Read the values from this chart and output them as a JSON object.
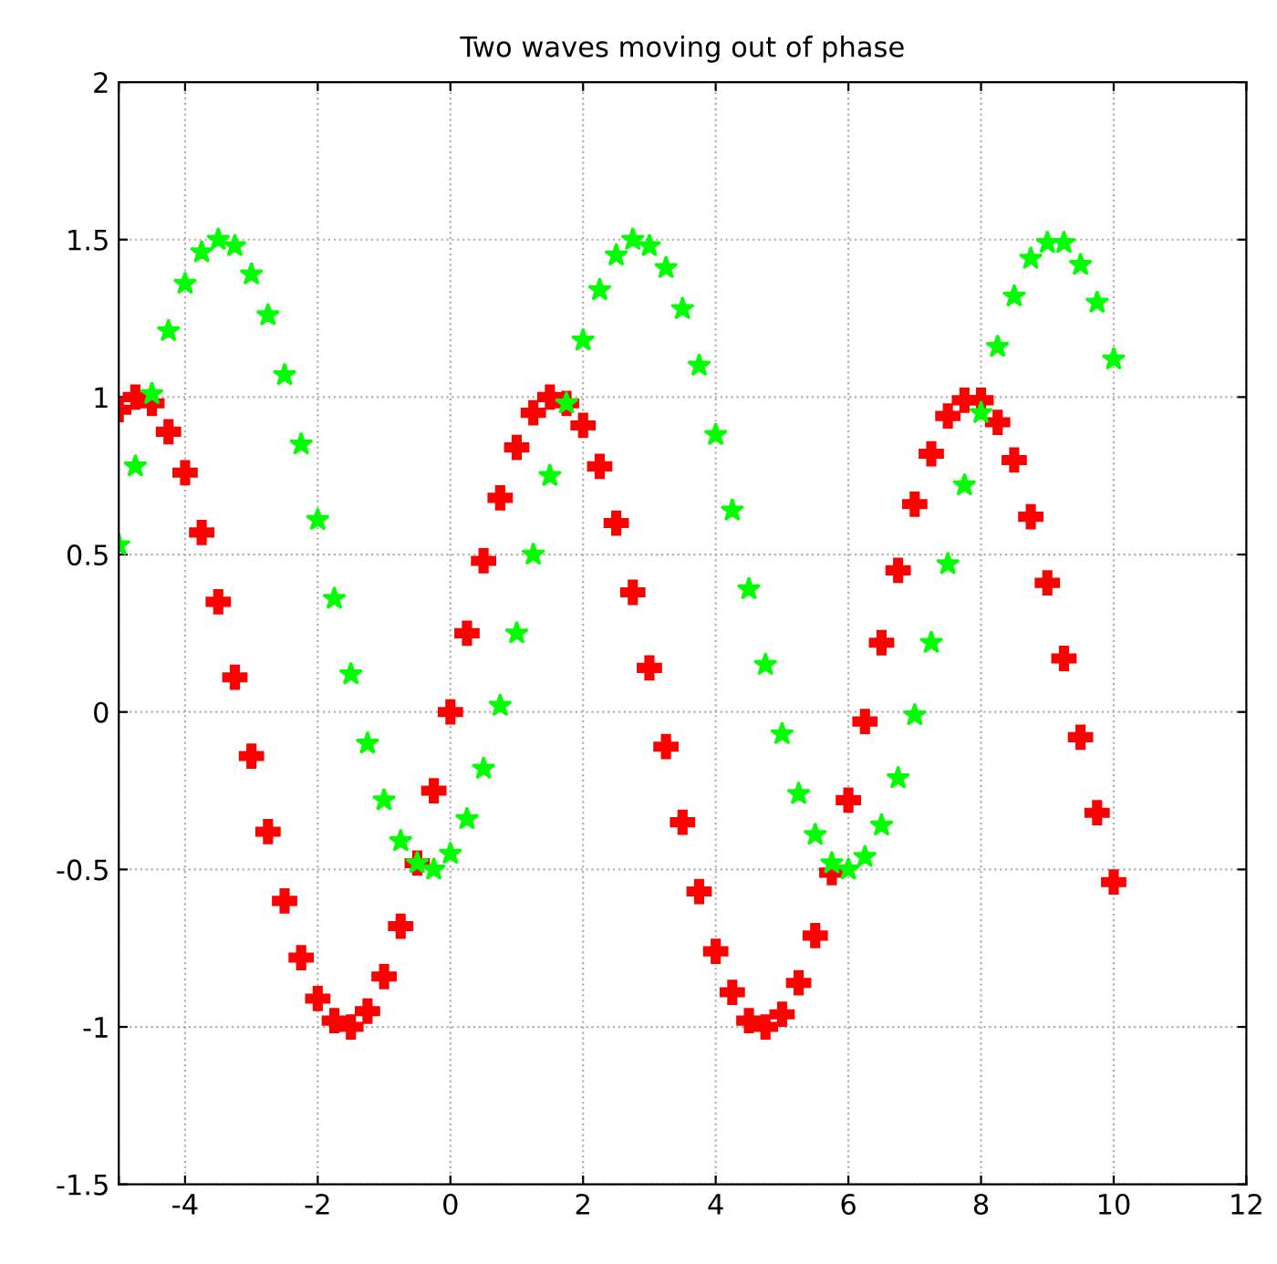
{
  "chart_data": {
    "type": "scatter",
    "title": "Two waves moving out of phase",
    "x": [
      -5,
      -4.75,
      -4.5,
      -4.25,
      -4,
      -3.75,
      -3.5,
      -3.25,
      -3,
      -2.75,
      -2.5,
      -2.25,
      -2,
      -1.75,
      -1.5,
      -1.25,
      -1,
      -0.75,
      -0.5,
      -0.25,
      0,
      0.25,
      0.5,
      0.75,
      1,
      1.25,
      1.5,
      1.75,
      2,
      2.25,
      2.5,
      2.75,
      3,
      3.25,
      3.5,
      3.75,
      4,
      4.25,
      4.5,
      4.75,
      5,
      5.25,
      5.5,
      5.75,
      6,
      6.25,
      6.5,
      6.75,
      7,
      7.25,
      7.5,
      7.75,
      8,
      8.25,
      8.5,
      8.75,
      9,
      9.25,
      9.5,
      9.75,
      10
    ],
    "series": [
      {
        "color": "#ff0000",
        "marker": "cross",
        "values": [
          0.96,
          1.0,
          0.98,
          0.89,
          0.76,
          0.57,
          0.35,
          0.11,
          -0.14,
          -0.38,
          -0.6,
          -0.78,
          -0.91,
          -0.98,
          -1.0,
          -0.95,
          -0.84,
          -0.68,
          -0.48,
          -0.25,
          0,
          0.25,
          0.48,
          0.68,
          0.84,
          0.95,
          1.0,
          0.98,
          0.91,
          0.78,
          0.6,
          0.38,
          0.14,
          -0.11,
          -0.35,
          -0.57,
          -0.76,
          -0.89,
          -0.98,
          -1.0,
          -0.96,
          -0.86,
          -0.71,
          -0.51,
          -0.28,
          -0.03,
          0.22,
          0.45,
          0.66,
          0.82,
          0.94,
          0.99,
          0.99,
          0.92,
          0.8,
          0.62,
          0.41,
          0.17,
          -0.08,
          -0.32,
          -0.54
        ]
      },
      {
        "color": "#00ff00",
        "marker": "star",
        "values": [
          0.53,
          0.78,
          1.01,
          1.21,
          1.36,
          1.46,
          1.5,
          1.48,
          1.39,
          1.26,
          1.07,
          0.85,
          0.61,
          0.36,
          0.12,
          -0.1,
          -0.28,
          -0.41,
          -0.48,
          -0.5,
          -0.45,
          -0.34,
          -0.18,
          0.02,
          0.25,
          0.5,
          0.75,
          0.98,
          1.18,
          1.34,
          1.45,
          1.5,
          1.48,
          1.41,
          1.28,
          1.1,
          0.88,
          0.64,
          0.39,
          0.15,
          -0.07,
          -0.26,
          -0.39,
          -0.48,
          -0.5,
          -0.46,
          -0.36,
          -0.21,
          -0.01,
          0.22,
          0.47,
          0.72,
          0.95,
          1.16,
          1.32,
          1.44,
          1.49,
          1.49,
          1.42,
          1.3,
          1.12
        ]
      }
    ],
    "xlim": [
      -5,
      12
    ],
    "xticks": [
      {
        "value": -5,
        "label": null
      },
      -4,
      -2,
      0,
      2,
      4,
      6,
      8,
      10,
      12
    ],
    "ylim": [
      -1.5,
      2
    ],
    "yticks": [
      -1.5,
      -1,
      -0.5,
      0,
      0.5,
      1,
      1.5,
      2
    ],
    "grid": true,
    "legend": false
  }
}
